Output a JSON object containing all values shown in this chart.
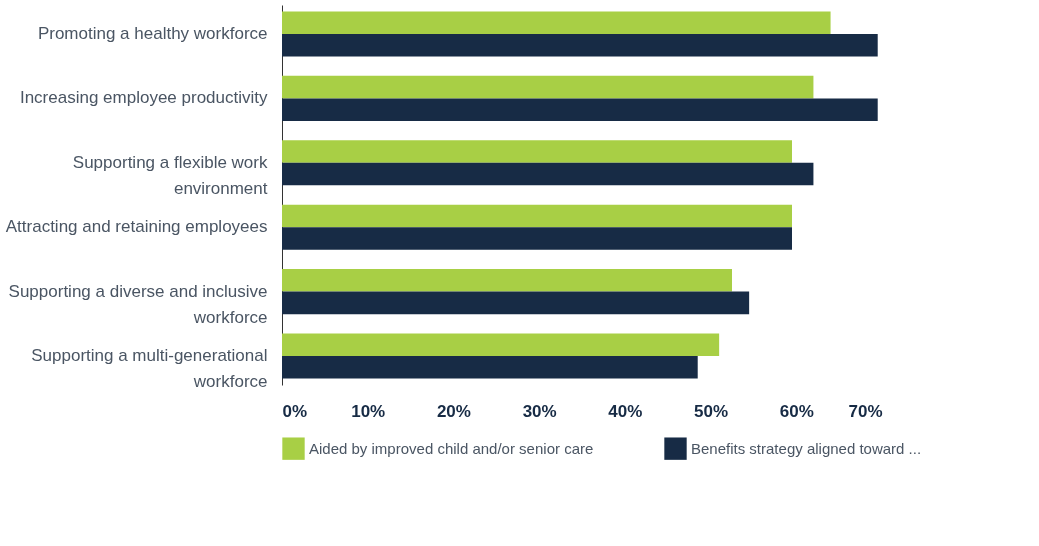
{
  "chart_data": {
    "type": "bar",
    "orientation": "horizontal",
    "categories": [
      "Promoting a healthy workforce",
      "Increasing employee productivity",
      "Supporting a flexible work environment",
      "Attracting and retaining employees",
      "Supporting a diverse and inclusive workforce",
      "Supporting a multi-generational workforce"
    ],
    "series": [
      {
        "name": "Aided by improved child and/or senior care",
        "color": "#a8cf45",
        "values": [
          64,
          62,
          59.5,
          59.5,
          52.5,
          51
        ]
      },
      {
        "name": "Benefits strategy aligned toward ...",
        "color": "#172b45",
        "values": [
          69.5,
          69.5,
          62,
          59.5,
          54.5,
          48.5
        ]
      }
    ],
    "xlim": [
      0,
      70
    ],
    "xticks": [
      {
        "value": 0,
        "label": "0%"
      },
      {
        "value": 10,
        "label": "10%"
      },
      {
        "value": 20,
        "label": "20%"
      },
      {
        "value": 30,
        "label": "30%"
      },
      {
        "value": 40,
        "label": "40%"
      },
      {
        "value": 50,
        "label": "50%"
      },
      {
        "value": 60,
        "label": "60%"
      },
      {
        "value": 70,
        "label": "70%"
      }
    ],
    "grid": false,
    "legend": "bottom"
  }
}
